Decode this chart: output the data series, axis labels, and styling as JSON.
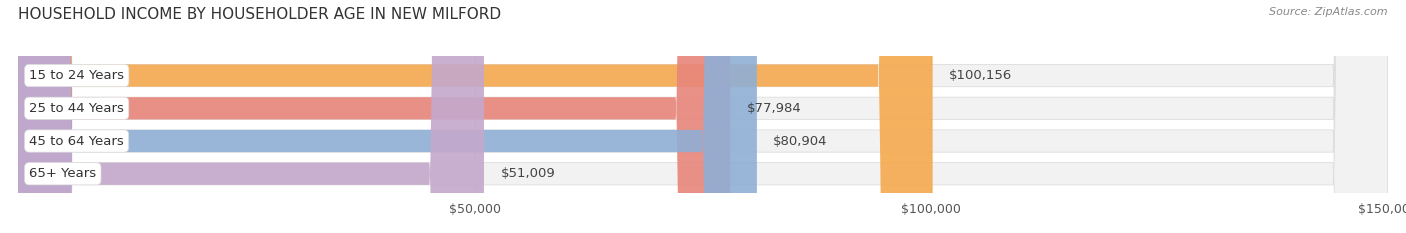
{
  "title": "HOUSEHOLD INCOME BY HOUSEHOLDER AGE IN NEW MILFORD",
  "source": "Source: ZipAtlas.com",
  "categories": [
    "15 to 24 Years",
    "25 to 44 Years",
    "45 to 64 Years",
    "65+ Years"
  ],
  "values": [
    100156,
    77984,
    80904,
    51009
  ],
  "bar_colors": [
    "#F5A94E",
    "#E8857A",
    "#8FAFD6",
    "#C4A8CC"
  ],
  "value_labels": [
    "$100,156",
    "$77,984",
    "$80,904",
    "$51,009"
  ],
  "xlim": [
    0,
    150000
  ],
  "xticks": [
    50000,
    100000,
    150000
  ],
  "xtick_labels": [
    "$50,000",
    "$100,000",
    "$150,000"
  ],
  "title_fontsize": 11,
  "label_fontsize": 9.5,
  "tick_fontsize": 9,
  "background_color": "#FFFFFF"
}
